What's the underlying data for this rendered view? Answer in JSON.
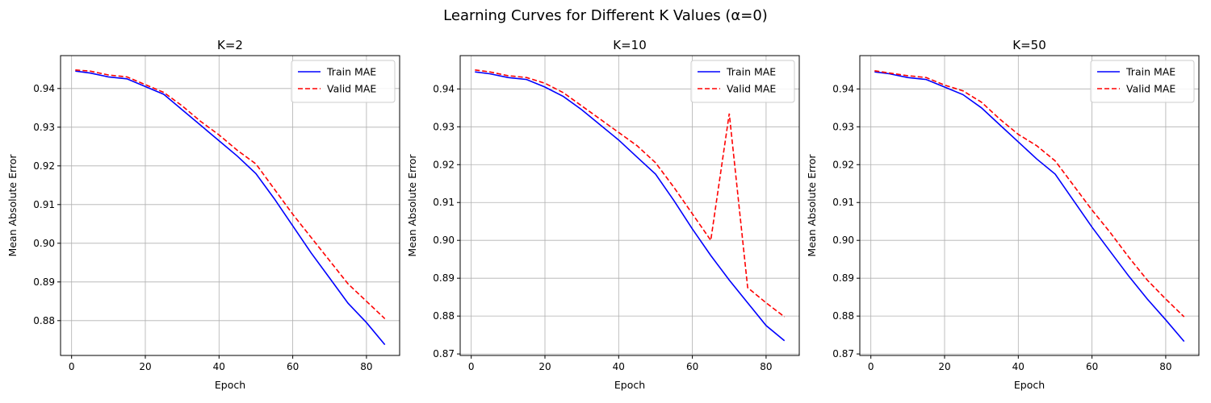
{
  "figure": {
    "title": "Learning Curves for Different K Values (α=0)"
  },
  "chart_data": [
    {
      "type": "line",
      "title": "K=2",
      "xlabel": "Epoch",
      "ylabel": "Mean Absolute Error",
      "xlim": [
        -3,
        89
      ],
      "ylim": [
        0.871,
        0.9485
      ],
      "xticks": [
        0,
        20,
        40,
        60,
        80
      ],
      "yticks": [
        0.88,
        0.89,
        0.9,
        0.91,
        0.92,
        0.93,
        0.94
      ],
      "ytick_labels": [
        "0.88",
        "0.89",
        "0.90",
        "0.91",
        "0.92",
        "0.93",
        "0.94"
      ],
      "grid": true,
      "legend_position": "top-right",
      "x": [
        1,
        5,
        10,
        15,
        20,
        25,
        30,
        35,
        40,
        45,
        50,
        55,
        60,
        65,
        70,
        75,
        80,
        85
      ],
      "series": [
        {
          "name": "Train MAE",
          "color": "#0000ff",
          "dash": "solid",
          "values": [
            0.9445,
            0.944,
            0.943,
            0.9425,
            0.9405,
            0.9385,
            0.9345,
            0.9305,
            0.9265,
            0.9225,
            0.918,
            0.9115,
            0.9045,
            0.8975,
            0.891,
            0.8845,
            0.8795,
            0.8738
          ]
        },
        {
          "name": "Valid MAE",
          "color": "#ff0000",
          "dash": "dashed",
          "values": [
            0.9448,
            0.9445,
            0.9435,
            0.943,
            0.941,
            0.939,
            0.9355,
            0.9315,
            0.928,
            0.924,
            0.9205,
            0.914,
            0.9075,
            0.9015,
            0.8955,
            0.8895,
            0.885,
            0.8805
          ]
        }
      ]
    },
    {
      "type": "line",
      "title": "K=10",
      "xlabel": "Epoch",
      "ylabel": "Mean Absolute Error",
      "xlim": [
        -3,
        89
      ],
      "ylim": [
        0.8696,
        0.9488
      ],
      "xticks": [
        0,
        20,
        40,
        60,
        80
      ],
      "yticks": [
        0.87,
        0.88,
        0.89,
        0.9,
        0.91,
        0.92,
        0.93,
        0.94
      ],
      "ytick_labels": [
        "0.87",
        "0.88",
        "0.89",
        "0.90",
        "0.91",
        "0.92",
        "0.93",
        "0.94"
      ],
      "grid": true,
      "legend_position": "top-right",
      "x": [
        1,
        5,
        10,
        15,
        20,
        25,
        30,
        35,
        40,
        45,
        50,
        55,
        60,
        65,
        70,
        75,
        80,
        85
      ],
      "series": [
        {
          "name": "Train MAE",
          "color": "#0000ff",
          "dash": "solid",
          "values": [
            0.9445,
            0.944,
            0.943,
            0.9425,
            0.9405,
            0.938,
            0.9345,
            0.9305,
            0.9265,
            0.922,
            0.9175,
            0.9105,
            0.903,
            0.896,
            0.8895,
            0.8835,
            0.8775,
            0.8735
          ]
        },
        {
          "name": "Valid MAE",
          "color": "#ff0000",
          "dash": "dashed",
          "values": [
            0.945,
            0.9445,
            0.9435,
            0.943,
            0.9415,
            0.939,
            0.9355,
            0.932,
            0.9285,
            0.925,
            0.9205,
            0.914,
            0.907,
            0.9,
            0.9335,
            0.8875,
            0.8835,
            0.8798
          ]
        }
      ]
    },
    {
      "type": "line",
      "title": "K=50",
      "xlabel": "Epoch",
      "ylabel": "Mean Absolute Error",
      "xlim": [
        -3,
        89
      ],
      "ylim": [
        0.8696,
        0.9488
      ],
      "xticks": [
        0,
        20,
        40,
        60,
        80
      ],
      "yticks": [
        0.87,
        0.88,
        0.89,
        0.9,
        0.91,
        0.92,
        0.93,
        0.94
      ],
      "ytick_labels": [
        "0.87",
        "0.88",
        "0.89",
        "0.90",
        "0.91",
        "0.92",
        "0.93",
        "0.94"
      ],
      "grid": true,
      "legend_position": "top-right",
      "x": [
        1,
        5,
        10,
        15,
        20,
        25,
        30,
        35,
        40,
        45,
        50,
        55,
        60,
        65,
        70,
        75,
        80,
        85
      ],
      "series": [
        {
          "name": "Train MAE",
          "color": "#0000ff",
          "dash": "solid",
          "values": [
            0.9445,
            0.944,
            0.943,
            0.9425,
            0.9405,
            0.9385,
            0.935,
            0.9305,
            0.926,
            0.9215,
            0.9175,
            0.9105,
            0.9035,
            0.897,
            0.8905,
            0.8845,
            0.879,
            0.8733
          ]
        },
        {
          "name": "Valid MAE",
          "color": "#ff0000",
          "dash": "dashed",
          "values": [
            0.9448,
            0.9442,
            0.9435,
            0.943,
            0.941,
            0.9395,
            0.9365,
            0.932,
            0.928,
            0.925,
            0.921,
            0.9145,
            0.908,
            0.902,
            0.8955,
            0.8895,
            0.8845,
            0.8798
          ]
        }
      ]
    }
  ]
}
